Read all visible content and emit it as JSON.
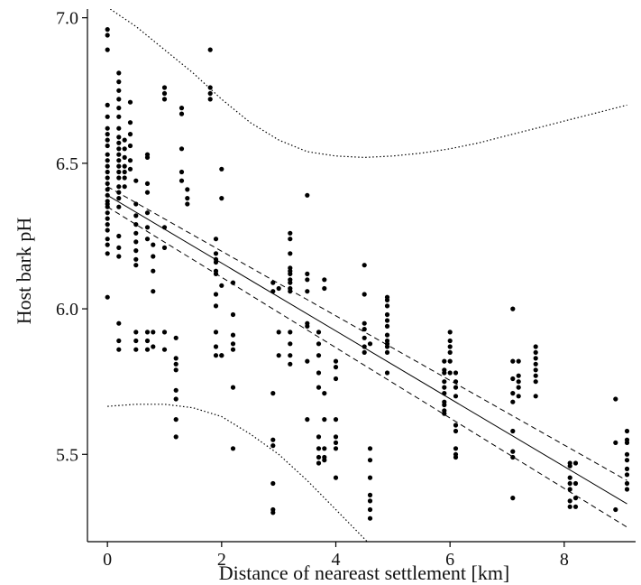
{
  "chart_data": {
    "type": "scatter",
    "title": "",
    "xlabel": "Distance of neareast settlement [km]",
    "ylabel": "Host bark pH",
    "xlim": [
      -0.35,
      9.25
    ],
    "ylim": [
      5.2,
      7.03
    ],
    "x_ticks": [
      {
        "value": 0,
        "label": "0"
      },
      {
        "value": 2,
        "label": "2"
      },
      {
        "value": 4,
        "label": "4"
      },
      {
        "value": 6,
        "label": "6"
      },
      {
        "value": 8,
        "label": "8"
      }
    ],
    "y_ticks": [
      {
        "value": 5.5,
        "label": "5.5"
      },
      {
        "value": 6.0,
        "label": "6.0"
      },
      {
        "value": 6.5,
        "label": "6.5"
      },
      {
        "value": 7.0,
        "label": "7.0"
      }
    ],
    "grid": false,
    "legend": "none",
    "colors": {
      "points": "#000000",
      "lines": "#000000",
      "axis": "#000000"
    },
    "regression": {
      "x": [
        0,
        9.1
      ],
      "y": [
        6.39,
        5.33
      ]
    },
    "confidence_band": {
      "upper": {
        "x": [
          0,
          9.1
        ],
        "y": [
          6.42,
          5.41
        ]
      },
      "lower": {
        "x": [
          0,
          9.1
        ],
        "y": [
          6.35,
          5.25
        ]
      }
    },
    "prediction_band": {
      "upper": {
        "x": [
          0.05,
          0.5,
          1.0,
          1.5,
          2.0,
          2.5,
          3.0,
          3.5,
          4.0,
          4.5,
          5.0,
          5.5,
          6.0,
          6.5,
          7.0,
          7.5,
          8.0,
          8.5,
          9.1
        ],
        "y": [
          7.03,
          6.97,
          6.89,
          6.81,
          6.72,
          6.64,
          6.58,
          6.54,
          6.525,
          6.52,
          6.525,
          6.535,
          6.55,
          6.57,
          6.595,
          6.62,
          6.645,
          6.67,
          6.7
        ]
      },
      "lower": {
        "x": [
          0.0,
          0.5,
          1.0,
          1.5,
          2.0,
          2.5,
          3.0,
          3.5,
          4.0,
          4.55
        ],
        "y": [
          5.665,
          5.672,
          5.672,
          5.66,
          5.63,
          5.57,
          5.5,
          5.41,
          5.31,
          5.2
        ]
      }
    },
    "series": [
      {
        "x": [
          0,
          0,
          0,
          0,
          0,
          0,
          0,
          0,
          0,
          0,
          0,
          0,
          0,
          0,
          0,
          0,
          0,
          0,
          0,
          0,
          0,
          0,
          0,
          0,
          0,
          0,
          0,
          0
        ],
        "y": [
          6.96,
          6.94,
          6.89,
          6.7,
          6.66,
          6.62,
          6.58,
          6.56,
          6.53,
          6.51,
          6.49,
          6.47,
          6.45,
          6.43,
          6.41,
          6.39,
          6.37,
          6.36,
          6.35,
          6.33,
          6.31,
          6.29,
          6.27,
          6.24,
          6.22,
          6.19,
          6.04,
          6.6
        ]
      },
      {
        "x": [
          0.2,
          0.2,
          0.2,
          0.2,
          0.2,
          0.2,
          0.2,
          0.2,
          0.2,
          0.2,
          0.2,
          0.2,
          0.2,
          0.2,
          0.2,
          0.2,
          0.2,
          0.2,
          0.2,
          0.2,
          0.2,
          0.2,
          0.2,
          0.2,
          0.2
        ],
        "y": [
          6.81,
          6.78,
          6.75,
          6.72,
          6.69,
          6.66,
          6.62,
          6.59,
          6.57,
          6.55,
          6.53,
          6.51,
          6.49,
          6.47,
          6.45,
          6.42,
          6.4,
          6.38,
          6.35,
          6.25,
          6.21,
          6.18,
          5.95,
          5.89,
          5.86
        ]
      },
      {
        "x": [
          0.3,
          0.3,
          0.3,
          0.3,
          0.3,
          0.3,
          0.3,
          0.4,
          0.4,
          0.4,
          0.4,
          0.4,
          0.4
        ],
        "y": [
          6.58,
          6.55,
          6.52,
          6.49,
          6.47,
          6.45,
          6.42,
          6.71,
          6.64,
          6.6,
          6.56,
          6.51,
          6.48
        ]
      },
      {
        "x": [
          0.5,
          0.5,
          0.5,
          0.5,
          0.5,
          0.5,
          0.5,
          0.5,
          0.5,
          0.5,
          0.5,
          0.5
        ],
        "y": [
          6.44,
          6.36,
          6.32,
          6.29,
          6.26,
          6.23,
          6.2,
          6.17,
          6.15,
          5.92,
          5.89,
          5.86
        ]
      },
      {
        "x": [
          0.7,
          0.7,
          0.7,
          0.7,
          0.7,
          0.7,
          0.7,
          0.7,
          0.7,
          0.7
        ],
        "y": [
          6.53,
          6.52,
          6.43,
          6.4,
          6.33,
          6.28,
          6.24,
          5.92,
          5.89,
          5.86
        ]
      },
      {
        "x": [
          0.8,
          0.8,
          0.8,
          0.8,
          0.8,
          0.8
        ],
        "y": [
          6.22,
          6.18,
          6.13,
          6.06,
          5.92,
          5.87
        ]
      },
      {
        "x": [
          1.0,
          1.0,
          1.0,
          1.0,
          1.0,
          1.0,
          1.0
        ],
        "y": [
          6.76,
          6.74,
          6.72,
          6.28,
          6.21,
          5.92,
          5.86
        ]
      },
      {
        "x": [
          1.2,
          1.2,
          1.2,
          1.2,
          1.2,
          1.2,
          1.2,
          1.2
        ],
        "y": [
          5.9,
          5.83,
          5.81,
          5.79,
          5.72,
          5.69,
          5.62,
          5.56
        ]
      },
      {
        "x": [
          1.3,
          1.3,
          1.3,
          1.3,
          1.3,
          1.4,
          1.4,
          1.4
        ],
        "y": [
          6.69,
          6.67,
          6.55,
          6.47,
          6.44,
          6.41,
          6.38,
          6.36
        ]
      },
      {
        "x": [
          1.8,
          1.8,
          1.8,
          1.8
        ],
        "y": [
          6.89,
          6.76,
          6.74,
          6.72
        ]
      },
      {
        "x": [
          1.9,
          1.9,
          1.9,
          1.9,
          1.9,
          1.9,
          1.9,
          1.9,
          1.9,
          1.9,
          1.9
        ],
        "y": [
          6.24,
          6.19,
          6.17,
          6.16,
          6.13,
          6.12,
          6.05,
          6.01,
          5.92,
          5.87,
          5.84
        ]
      },
      {
        "x": [
          2.0,
          2.0,
          2.0,
          2.0,
          2.0
        ],
        "y": [
          6.48,
          6.38,
          6.08,
          5.84,
          5.84
        ]
      },
      {
        "x": [
          2.2,
          2.2,
          2.2,
          2.2,
          2.2,
          2.2,
          2.2
        ],
        "y": [
          6.09,
          5.98,
          5.91,
          5.88,
          5.86,
          5.73,
          5.52
        ]
      },
      {
        "x": [
          2.9,
          2.9,
          2.9,
          2.9,
          2.9,
          2.9,
          2.9,
          2.9
        ],
        "y": [
          6.09,
          6.06,
          5.71,
          5.55,
          5.53,
          5.31,
          5.3,
          5.4
        ]
      },
      {
        "x": [
          3.0,
          3.0,
          3.0
        ],
        "y": [
          6.07,
          5.92,
          5.84
        ]
      },
      {
        "x": [
          3.2,
          3.2,
          3.2,
          3.2,
          3.2,
          3.2,
          3.2,
          3.2,
          3.2,
          3.2,
          3.2,
          3.2,
          3.2,
          3.2
        ],
        "y": [
          6.26,
          6.24,
          6.19,
          6.14,
          6.13,
          6.12,
          6.1,
          6.09,
          6.07,
          6.06,
          5.92,
          5.88,
          5.84,
          5.81
        ]
      },
      {
        "x": [
          3.5,
          3.5,
          3.5,
          3.5,
          3.5,
          3.5,
          3.5,
          3.5
        ],
        "y": [
          6.39,
          6.12,
          6.1,
          6.06,
          5.95,
          5.94,
          5.62,
          5.82
        ]
      },
      {
        "x": [
          3.7,
          3.7,
          3.7,
          3.7,
          3.7,
          3.7,
          3.7,
          3.7,
          3.7
        ],
        "y": [
          5.92,
          5.88,
          5.84,
          5.78,
          5.73,
          5.56,
          5.52,
          5.49,
          5.47
        ]
      },
      {
        "x": [
          3.8,
          3.8,
          3.8,
          3.8,
          3.8,
          3.8,
          3.8
        ],
        "y": [
          6.1,
          6.07,
          5.71,
          5.62,
          5.52,
          5.49,
          5.48
        ]
      },
      {
        "x": [
          4.0,
          4.0,
          4.0,
          4.0,
          4.0,
          4.0,
          4.0,
          4.0
        ],
        "y": [
          5.82,
          5.8,
          5.76,
          5.62,
          5.56,
          5.54,
          5.52,
          5.42
        ]
      },
      {
        "x": [
          4.5,
          4.5,
          4.5,
          4.5,
          4.5,
          4.5,
          4.5
        ],
        "y": [
          6.15,
          6.05,
          5.95,
          5.93,
          5.9,
          5.87,
          5.85
        ]
      },
      {
        "x": [
          4.6,
          4.6,
          4.6,
          4.6,
          4.6,
          4.6,
          4.6,
          4.6
        ],
        "y": [
          5.88,
          5.52,
          5.48,
          5.42,
          5.36,
          5.34,
          5.31,
          5.28
        ]
      },
      {
        "x": [
          4.9,
          4.9,
          4.9,
          4.9,
          4.9,
          4.9,
          4.9,
          4.9,
          4.9,
          4.9,
          4.9,
          4.9
        ],
        "y": [
          6.04,
          6.03,
          6.01,
          5.98,
          5.96,
          5.94,
          5.91,
          5.89,
          5.88,
          5.87,
          5.85,
          5.78
        ]
      },
      {
        "x": [
          5.9,
          5.9,
          5.9,
          5.9,
          5.9,
          5.9,
          5.9,
          5.9,
          5.9,
          5.9
        ],
        "y": [
          5.82,
          5.79,
          5.78,
          5.75,
          5.73,
          5.71,
          5.68,
          5.67,
          5.65,
          5.64
        ]
      },
      {
        "x": [
          6.0,
          6.0,
          6.0,
          6.0,
          6.0,
          6.0
        ],
        "y": [
          5.92,
          5.89,
          5.87,
          5.85,
          5.82,
          5.78
        ]
      },
      {
        "x": [
          6.1,
          6.1,
          6.1,
          6.1,
          6.1,
          6.1,
          6.1,
          6.1,
          6.1
        ],
        "y": [
          5.78,
          5.75,
          5.73,
          5.7,
          5.6,
          5.58,
          5.52,
          5.5,
          5.49
        ]
      },
      {
        "x": [
          7.1,
          7.1,
          7.1,
          7.1,
          7.1,
          7.1,
          7.1,
          7.1,
          7.1
        ],
        "y": [
          6.0,
          5.82,
          5.76,
          5.71,
          5.68,
          5.58,
          5.51,
          5.49,
          5.35
        ]
      },
      {
        "x": [
          7.2,
          7.2,
          7.2,
          7.2,
          7.2
        ],
        "y": [
          5.82,
          5.77,
          5.75,
          5.73,
          5.7
        ]
      },
      {
        "x": [
          7.5,
          7.5,
          7.5,
          7.5,
          7.5,
          7.5,
          7.5,
          7.5
        ],
        "y": [
          5.87,
          5.85,
          5.83,
          5.81,
          5.79,
          5.77,
          5.75,
          5.7
        ]
      },
      {
        "x": [
          8.1,
          8.1,
          8.1,
          8.1,
          8.1,
          8.1,
          8.1
        ],
        "y": [
          5.47,
          5.42,
          5.4,
          5.38,
          5.34,
          5.32,
          5.46
        ]
      },
      {
        "x": [
          8.2,
          8.2,
          8.2,
          8.2
        ],
        "y": [
          5.47,
          5.4,
          5.35,
          5.32
        ]
      },
      {
        "x": [
          8.9,
          8.9,
          8.9
        ],
        "y": [
          5.69,
          5.54,
          5.31
        ]
      },
      {
        "x": [
          9.1,
          9.1,
          9.1,
          9.1,
          9.1,
          9.1,
          9.1,
          9.1,
          9.1
        ],
        "y": [
          5.58,
          5.55,
          5.5,
          5.48,
          5.45,
          5.43,
          5.4,
          5.38,
          5.54
        ]
      }
    ]
  }
}
